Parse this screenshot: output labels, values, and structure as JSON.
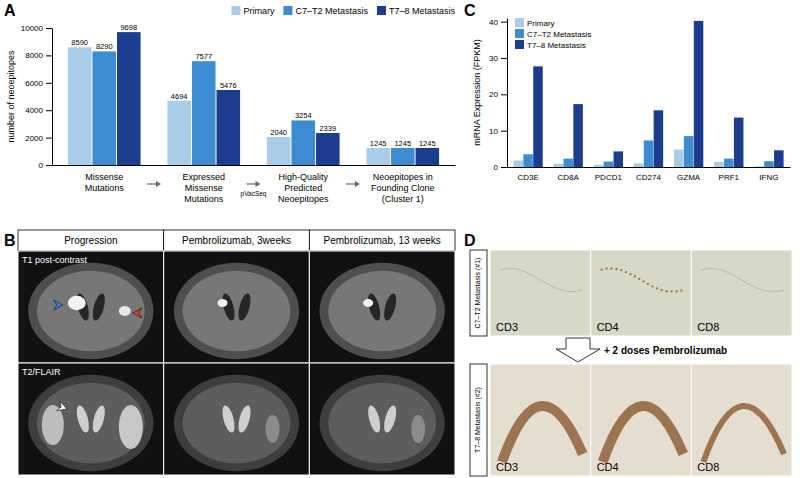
{
  "chart_data": [
    {
      "panel_label": "A",
      "type": "bar",
      "y_label": "number of neoepitopes",
      "categories": [
        "Missense Mutations",
        "Expressed Missense Mutations",
        "High-Quality Predicted Neoepitopes",
        "Neoepitopes in Founding Clone (Cluster 1)"
      ],
      "series": [
        {
          "name": "Primary",
          "color": "#a9cce8",
          "values": [
            8590,
            4694,
            2040,
            1245
          ]
        },
        {
          "name": "C7–T2 Metastasis",
          "color": "#3d8bd1",
          "values": [
            8290,
            7577,
            3254,
            1245
          ]
        },
        {
          "name": "T7–8 Metastasis",
          "color": "#1c3c8e",
          "values": [
            9698,
            5476,
            2339,
            1245
          ]
        }
      ],
      "ylim": [
        0,
        10000
      ],
      "yticks": [
        0,
        2000,
        4000,
        6000,
        8000,
        10000
      ],
      "data_labels": true,
      "legend": "top-right",
      "annotations": [
        "pVacSeq"
      ]
    },
    {
      "panel_label": "C",
      "type": "bar",
      "y_label": "mRNA Expression (FPKM)",
      "categories": [
        "CD3E",
        "CD8A",
        "PDCD1",
        "CD274",
        "GZMA",
        "PRF1",
        "IFNG"
      ],
      "series": [
        {
          "name": "Primary",
          "color": "#a9cce8",
          "values": [
            1.8,
            0.9,
            0.6,
            1.0,
            4.8,
            1.4,
            0.2
          ]
        },
        {
          "name": "C7–T2 Metastasis",
          "color": "#3d8bd1",
          "values": [
            3.5,
            2.3,
            1.5,
            7.3,
            8.5,
            2.3,
            1.6
          ]
        },
        {
          "name": "T7–8 Metastasis",
          "color": "#1c3c8e",
          "values": [
            27.7,
            17.3,
            4.3,
            15.6,
            40.2,
            13.6,
            4.6
          ]
        }
      ],
      "ylim": [
        0,
        41
      ],
      "yticks": [
        0,
        10,
        20,
        30,
        40
      ],
      "legend": "top-left"
    }
  ],
  "panels": {
    "B": {
      "panel_label": "B",
      "columns": [
        "Progression",
        "Pembrolizumab, 3weeks",
        "Pembrolizumab, 13 weeks"
      ],
      "rows": [
        "T1 post-contrast",
        "T2/FLAIR"
      ]
    },
    "D": {
      "panel_label": "D",
      "rows": [
        {
          "label": "C7–T2 Metastasis (#1)",
          "stains": [
            "CD3",
            "CD4",
            "CD8"
          ]
        },
        {
          "label": "T7–8 Metastasis (#2)",
          "stains": [
            "CD3",
            "CD4",
            "CD8"
          ]
        }
      ],
      "treatment": "+ 2 doses Pembrolizumab"
    }
  }
}
